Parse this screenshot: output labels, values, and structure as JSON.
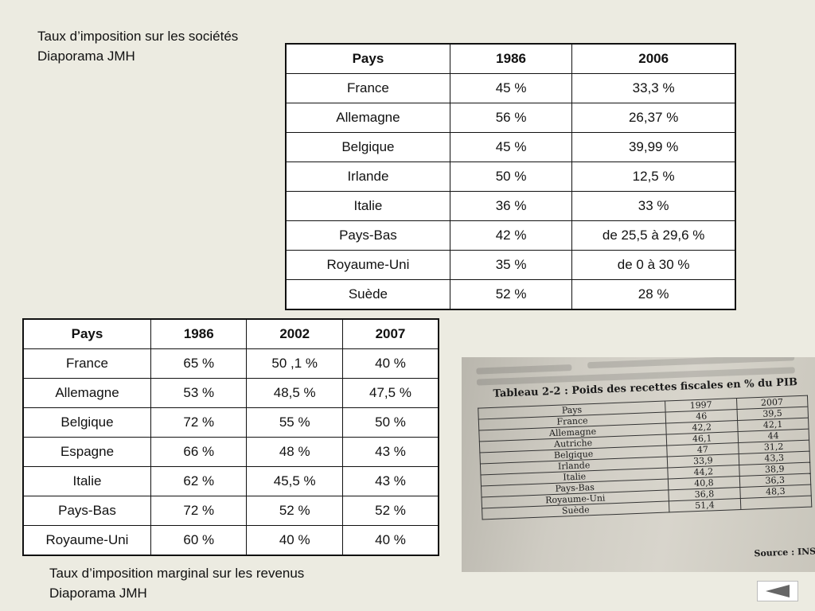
{
  "captions": {
    "top_line1": "Taux d’imposition sur les sociétés",
    "top_line2": "Diaporama JMH",
    "bottom_line1": "Taux d’imposition marginal sur les revenus",
    "bottom_line2": "Diaporama JMH"
  },
  "corporate_table": {
    "headers": [
      "Pays",
      "1986",
      "2006"
    ],
    "rows": [
      [
        "France",
        "45 %",
        "33,3 %"
      ],
      [
        "Allemagne",
        "56 %",
        "26,37 %"
      ],
      [
        "Belgique",
        "45 %",
        "39,99 %"
      ],
      [
        "Irlande",
        "50 %",
        "12,5 %"
      ],
      [
        "Italie",
        "36 %",
        "33 %"
      ],
      [
        "Pays-Bas",
        "42 %",
        "de 25,5 à 29,6 %"
      ],
      [
        "Royaume-Uni",
        "35 %",
        "de 0 à 30 %"
      ],
      [
        "Suède",
        "52 %",
        "28 %"
      ]
    ]
  },
  "marginal_table": {
    "headers": [
      "Pays",
      "1986",
      "2002",
      "2007"
    ],
    "rows": [
      [
        "France",
        "65 %",
        "50 ,1 %",
        "40 %"
      ],
      [
        "Allemagne",
        "53 %",
        "48,5 %",
        "47,5 %"
      ],
      [
        "Belgique",
        "72 %",
        "55 %",
        "50 %"
      ],
      [
        "Espagne",
        "66 %",
        "48 %",
        "43 %"
      ],
      [
        "Italie",
        "62 %",
        "45,5 %",
        "43 %"
      ],
      [
        "Pays-Bas",
        "72 %",
        "52 %",
        "52 %"
      ],
      [
        "Royaume-Uni",
        "60 %",
        "40 %",
        "40 %"
      ]
    ]
  },
  "scan": {
    "title": "Tableau 2-2 : Poids des recettes fiscales en % du PIB",
    "headers": [
      "Pays",
      "1997",
      "2007"
    ],
    "rows": [
      [
        "France",
        "46",
        "39,5"
      ],
      [
        "Allemagne",
        "42,2",
        "42,1"
      ],
      [
        "Autriche",
        "46,1",
        "44"
      ],
      [
        "Belgique",
        "47",
        "31,2"
      ],
      [
        "Irlande",
        "33,9",
        "43,3"
      ],
      [
        "Italie",
        "44,2",
        "38,9"
      ],
      [
        "Pays-Bas",
        "40,8",
        "36,3"
      ],
      [
        "Royaume-Uni",
        "36,8",
        "48,3"
      ],
      [
        "Suède",
        "51,4",
        ""
      ]
    ],
    "source": "Source : INSEE."
  },
  "nav": {
    "back_icon": "triangle-left-icon",
    "color": "#666666"
  }
}
